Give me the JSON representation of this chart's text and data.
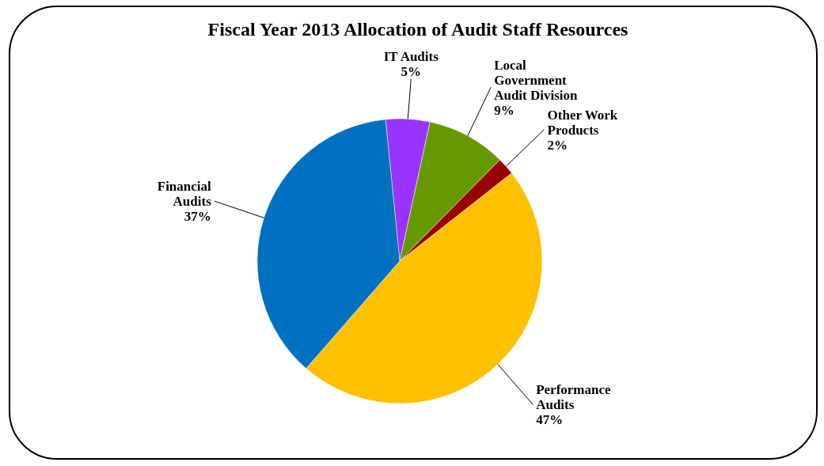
{
  "chart_data": {
    "type": "pie",
    "title": "Fiscal Year 2013 Allocation of Audit Staff Resources",
    "categories": [
      "IT Audits",
      "Local Government Audit Division",
      "Other Work Products",
      "Performance Audits",
      "Financial Audits"
    ],
    "values": [
      5,
      9,
      2,
      47,
      37
    ],
    "colors": [
      "#9933ff",
      "#669900",
      "#990000",
      "#ffc000",
      "#0070c0"
    ],
    "value_labels": [
      "5%",
      "9%",
      "2%",
      "47%",
      "37%"
    ]
  }
}
